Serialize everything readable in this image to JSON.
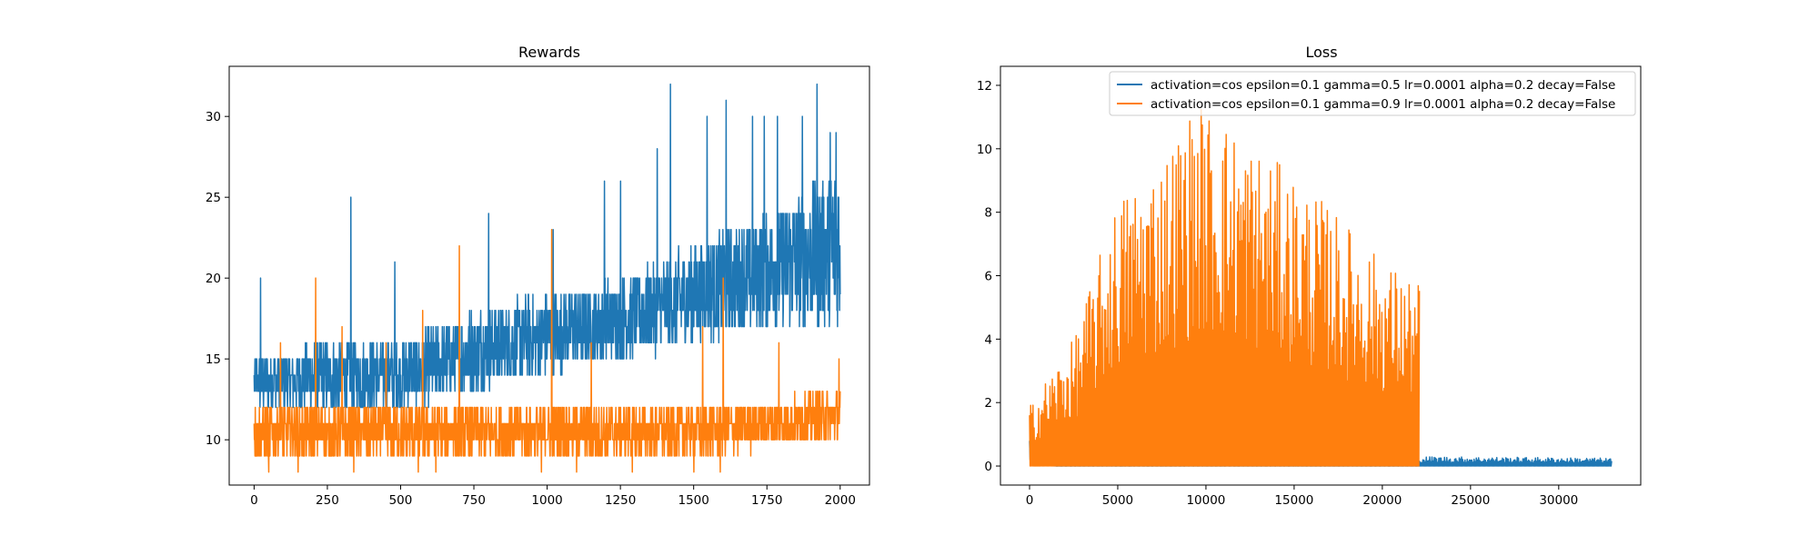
{
  "colors": {
    "blue": "#1f77b4",
    "orange": "#ff7f0e"
  },
  "chart_data": [
    {
      "type": "line",
      "title": "Rewards",
      "xlabel": "",
      "ylabel": "",
      "xlim": [
        -85,
        2100
      ],
      "ylim": [
        7.2,
        33.1
      ],
      "xticks": [
        0,
        250,
        500,
        750,
        1000,
        1250,
        1500,
        1750,
        2000
      ],
      "yticks": [
        10,
        15,
        20,
        25,
        30
      ],
      "legend": "none",
      "series": [
        {
          "color": "#1f77b4",
          "x_range": [
            0,
            2000
          ],
          "points": 2000,
          "trend": {
            "x": [
              0,
              250,
              500,
              750,
              1000,
              1250,
              1500,
              1750,
              2000
            ],
            "low": [
              12,
              12,
              12,
              13,
              14,
              15,
              16,
              17,
              17
            ],
            "high": [
              15,
              16,
              16,
              18,
              19,
              20,
              22,
              24,
              27
            ]
          },
          "spikes": [
            [
              22,
              20
            ],
            [
              330,
              25
            ],
            [
              480,
              21
            ],
            [
              800,
              24
            ],
            [
              1020,
              23
            ],
            [
              1195,
              26
            ],
            [
              1250,
              26
            ],
            [
              1375,
              28
            ],
            [
              1420,
              32
            ],
            [
              1545,
              30
            ],
            [
              1610,
              31
            ],
            [
              1700,
              30
            ],
            [
              1740,
              30
            ],
            [
              1785,
              30
            ],
            [
              1870,
              30
            ],
            [
              1920,
              32
            ],
            [
              1965,
              29
            ],
            [
              1985,
              29
            ]
          ]
        },
        {
          "color": "#ff7f0e",
          "x_range": [
            0,
            2000
          ],
          "points": 2000,
          "trend": {
            "x": [
              0,
              500,
              1000,
              1500,
              2000
            ],
            "low": [
              9,
              9,
              9,
              9,
              10
            ],
            "high": [
              12,
              12,
              12,
              12,
              13
            ]
          },
          "dips": [
            [
              50,
              8
            ],
            [
              150,
              8
            ],
            [
              340,
              8
            ],
            [
              560,
              8
            ],
            [
              620,
              8
            ],
            [
              980,
              8
            ],
            [
              1100,
              8
            ],
            [
              1290,
              8
            ],
            [
              1500,
              8
            ],
            [
              1590,
              8
            ]
          ],
          "spikes": [
            [
              90,
              16
            ],
            [
              210,
              20
            ],
            [
              300,
              17
            ],
            [
              450,
              16
            ],
            [
              575,
              18
            ],
            [
              700,
              22
            ],
            [
              1015,
              23
            ],
            [
              1150,
              16
            ],
            [
              1530,
              17
            ],
            [
              1600,
              20
            ],
            [
              1790,
              16
            ],
            [
              1995,
              15
            ]
          ]
        }
      ]
    },
    {
      "type": "line",
      "title": "Loss",
      "xlabel": "",
      "ylabel": "",
      "xlim": [
        -1650,
        34650
      ],
      "ylim": [
        -0.6,
        12.6
      ],
      "xticks": [
        0,
        5000,
        10000,
        15000,
        20000,
        25000,
        30000
      ],
      "yticks": [
        0,
        2,
        4,
        6,
        8,
        10,
        12
      ],
      "legend": "upper right",
      "series": [
        {
          "name": "activation=cos epsilon=0.1 gamma=0.5 lr=0.0001 alpha=0.2 decay=False",
          "color": "#1f77b4",
          "x_range": [
            0,
            33000
          ],
          "envelope": {
            "x": [
              0,
              500,
              1500,
              5000,
              22000,
              22050,
              33000
            ],
            "top": [
              1.0,
              0.4,
              0.1,
              0.05,
              0.1,
              0.3,
              0.25
            ],
            "bottom": [
              0.2,
              0.05,
              0.0,
              0.0,
              0.0,
              0.0,
              0.0
            ]
          }
        },
        {
          "name": "activation=cos epsilon=0.1 gamma=0.9 lr=0.0001 alpha=0.2 decay=False",
          "color": "#ff7f0e",
          "x_range": [
            0,
            22100
          ],
          "envelope": {
            "x": [
              0,
              1000,
              2500,
              5000,
              7500,
              9500,
              11000,
              14000,
              17000,
              20000,
              22100
            ],
            "top": [
              1.9,
              2.8,
              4.0,
              8.5,
              9.8,
              11.6,
              11.0,
              9.6,
              8.2,
              6.5,
              5.8
            ]
          }
        }
      ]
    }
  ]
}
